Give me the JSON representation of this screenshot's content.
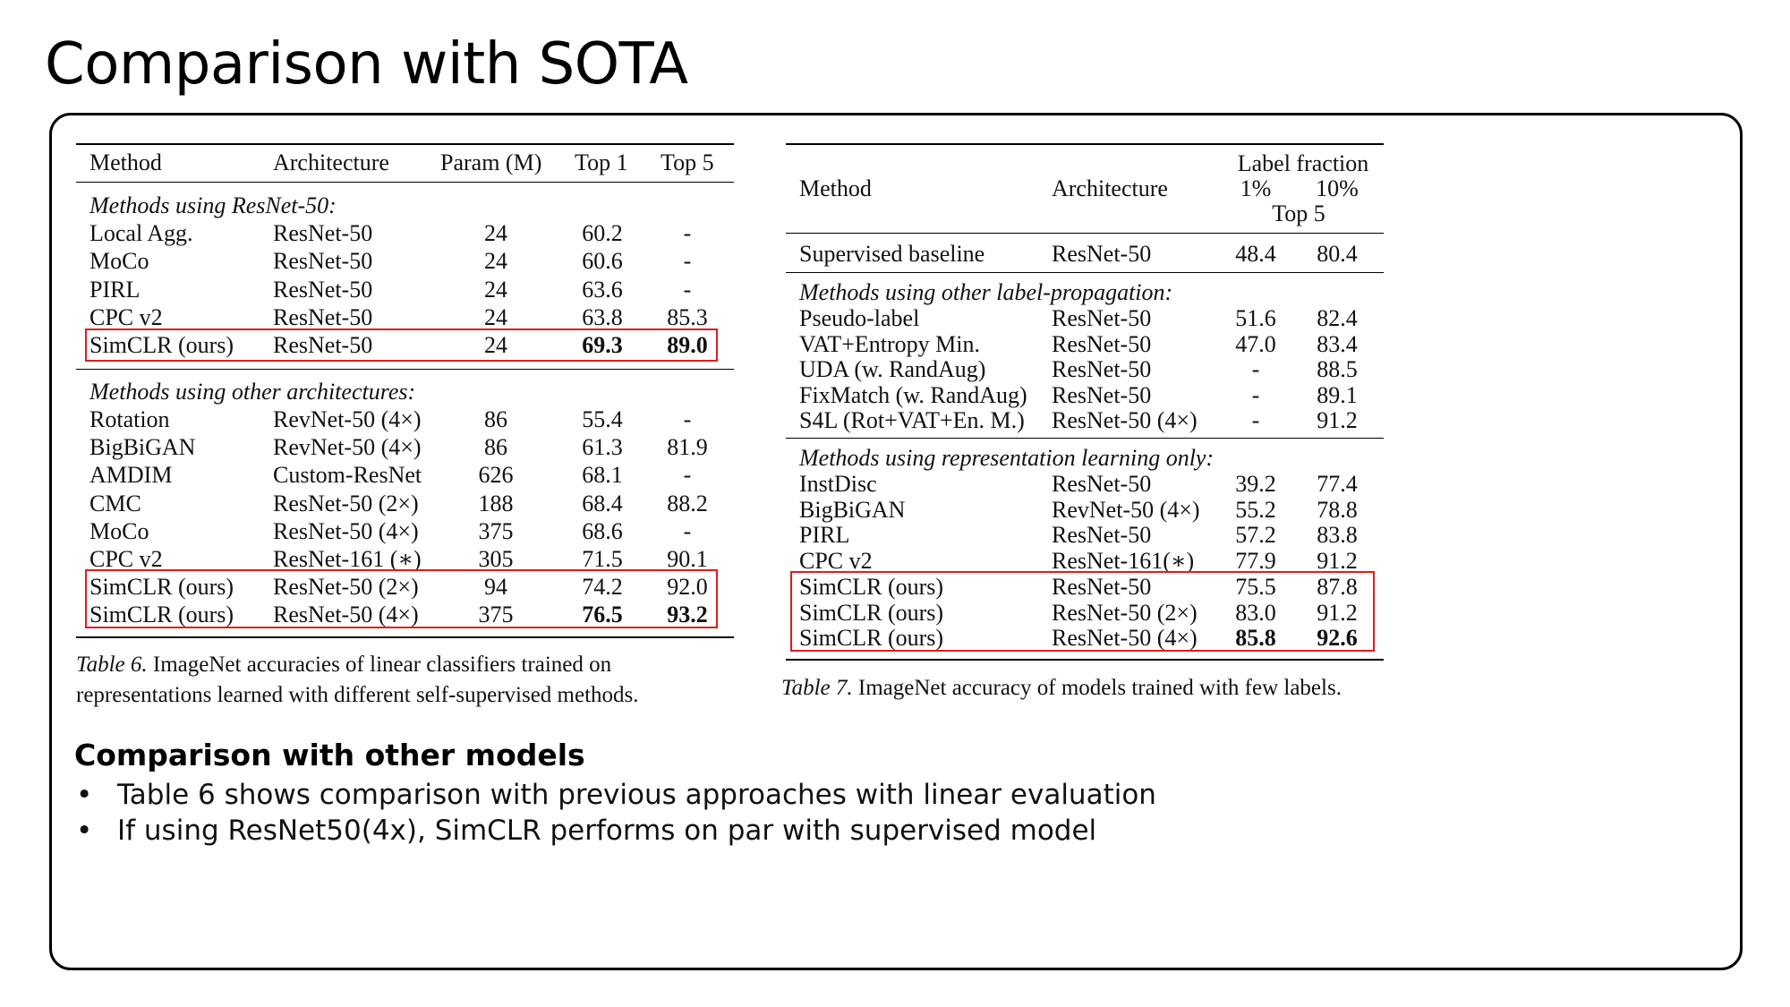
{
  "slide": {
    "title": "Comparison with SOTA",
    "subheading": "Comparison with other models",
    "bullets": [
      "Table 6 shows comparison with previous approaches with linear evaluation",
      "If using ResNet50(4x), SimCLR performs on par with supervised model"
    ]
  },
  "table6": {
    "headers": [
      "Method",
      "Architecture",
      "Param (M)",
      "Top 1",
      "Top 5"
    ],
    "section1": "Methods using ResNet-50:",
    "rows1": [
      [
        "Local Agg.",
        "ResNet-50",
        "24",
        "60.2",
        "-"
      ],
      [
        "MoCo",
        "ResNet-50",
        "24",
        "60.6",
        "-"
      ],
      [
        "PIRL",
        "ResNet-50",
        "24",
        "63.6",
        "-"
      ],
      [
        "CPC v2",
        "ResNet-50",
        "24",
        "63.8",
        "85.3"
      ],
      [
        "SimCLR (ours)",
        "ResNet-50",
        "24",
        "69.3",
        "89.0"
      ]
    ],
    "section2": "Methods using other architectures:",
    "rows2": [
      [
        "Rotation",
        "RevNet-50 (4×)",
        "86",
        "55.4",
        "-"
      ],
      [
        "BigBiGAN",
        "RevNet-50 (4×)",
        "86",
        "61.3",
        "81.9"
      ],
      [
        "AMDIM",
        "Custom-ResNet",
        "626",
        "68.1",
        "-"
      ],
      [
        "CMC",
        "ResNet-50 (2×)",
        "188",
        "68.4",
        "88.2"
      ],
      [
        "MoCo",
        "ResNet-50 (4×)",
        "375",
        "68.6",
        "-"
      ],
      [
        "CPC v2",
        "ResNet-161 (∗)",
        "305",
        "71.5",
        "90.1"
      ],
      [
        "SimCLR (ours)",
        "ResNet-50 (2×)",
        "94",
        "74.2",
        "92.0"
      ],
      [
        "SimCLR (ours)",
        "ResNet-50 (4×)",
        "375",
        "76.5",
        "93.2"
      ]
    ],
    "caption_label": "Table 6.",
    "caption_text": " ImageNet accuracies of linear classifiers trained on representations learned with different self-supervised methods."
  },
  "table7": {
    "header_method": "Method",
    "header_architecture": "Architecture",
    "header_label_fraction": "Label fraction",
    "header_1pct": "1%",
    "header_10pct": "10%",
    "header_top5": "Top 5",
    "baseline": [
      "Supervised baseline",
      "ResNet-50",
      "48.4",
      "80.4"
    ],
    "section1": "Methods using other label-propagation:",
    "rows1": [
      [
        "Pseudo-label",
        "ResNet-50",
        "51.6",
        "82.4"
      ],
      [
        "VAT+Entropy Min.",
        "ResNet-50",
        "47.0",
        "83.4"
      ],
      [
        "UDA (w. RandAug)",
        "ResNet-50",
        "-",
        "88.5"
      ],
      [
        "FixMatch (w. RandAug)",
        "ResNet-50",
        "-",
        "89.1"
      ],
      [
        "S4L (Rot+VAT+En. M.)",
        "ResNet-50 (4×)",
        "-",
        "91.2"
      ]
    ],
    "section2": "Methods using representation learning only:",
    "rows2": [
      [
        "InstDisc",
        "ResNet-50",
        "39.2",
        "77.4"
      ],
      [
        "BigBiGAN",
        "RevNet-50 (4×)",
        "55.2",
        "78.8"
      ],
      [
        "PIRL",
        "ResNet-50",
        "57.2",
        "83.8"
      ],
      [
        "CPC v2",
        "ResNet-161(∗)",
        "77.9",
        "91.2"
      ],
      [
        "SimCLR (ours)",
        "ResNet-50",
        "75.5",
        "87.8"
      ],
      [
        "SimCLR (ours)",
        "ResNet-50 (2×)",
        "83.0",
        "91.2"
      ],
      [
        "SimCLR (ours)",
        "ResNet-50 (4×)",
        "85.8",
        "92.6"
      ]
    ],
    "caption_label": "Table 7.",
    "caption_text": " ImageNet accuracy of models trained with few labels."
  }
}
